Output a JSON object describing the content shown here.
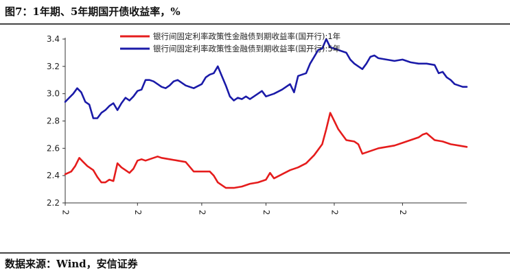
{
  "header": {
    "title": "图7：1年期、5年期国开债收益率，%"
  },
  "footer": {
    "source": "数据来源：Wind，安信证券"
  },
  "colors": {
    "series_1y": "#e51c1c",
    "series_5y": "#1a1aa8",
    "axis": "#333333"
  },
  "chart_data": {
    "type": "line",
    "title": "图7：1年期、5年期国开债收益率，%",
    "xlabel": "",
    "ylabel": "",
    "ylim": [
      2.2,
      3.4
    ],
    "yticks": [
      2.2,
      2.4,
      2.6,
      2.8,
      3.0,
      3.2,
      3.4
    ],
    "ytick_labels": [
      "2.2",
      "2.4",
      "2.6",
      "2.8",
      "3.0",
      "3.2",
      "3.4"
    ],
    "xlim": [
      0,
      100
    ],
    "xticks": [
      0,
      18,
      34,
      50,
      67,
      84
    ],
    "xtick_labels": [
      "2",
      "2",
      "2",
      "2",
      "2",
      "2"
    ],
    "grid": false,
    "legend": "top-center",
    "series": [
      {
        "name": "银行间固定利率政策性金融债到期收益率(国开行):1年",
        "color": "#e51c1c",
        "x": [
          0,
          1.5,
          2.5,
          3.5,
          4.5,
          5.5,
          7,
          8,
          9,
          10,
          11,
          12,
          13,
          14,
          15,
          16,
          17,
          18,
          19,
          20,
          21,
          22,
          23,
          24,
          26,
          28,
          30,
          32,
          34,
          36,
          37,
          38,
          39,
          40,
          42,
          44,
          46,
          48,
          50,
          51,
          52,
          54,
          56,
          58,
          60,
          62,
          63,
          64,
          65,
          66,
          67,
          68,
          69,
          70,
          72,
          73,
          74,
          76,
          78,
          80,
          82,
          84,
          86,
          88,
          89,
          90,
          92,
          94,
          96,
          98,
          100
        ],
        "values": [
          2.41,
          2.43,
          2.47,
          2.53,
          2.5,
          2.47,
          2.44,
          2.39,
          2.35,
          2.35,
          2.37,
          2.36,
          2.49,
          2.46,
          2.44,
          2.42,
          2.45,
          2.51,
          2.52,
          2.51,
          2.52,
          2.53,
          2.54,
          2.53,
          2.52,
          2.51,
          2.5,
          2.43,
          2.43,
          2.43,
          2.4,
          2.35,
          2.33,
          2.31,
          2.31,
          2.32,
          2.34,
          2.35,
          2.37,
          2.42,
          2.38,
          2.41,
          2.44,
          2.46,
          2.49,
          2.55,
          2.59,
          2.63,
          2.74,
          2.86,
          2.8,
          2.74,
          2.7,
          2.66,
          2.65,
          2.63,
          2.56,
          2.58,
          2.6,
          2.61,
          2.62,
          2.64,
          2.66,
          2.68,
          2.7,
          2.71,
          2.66,
          2.65,
          2.63,
          2.62,
          2.61
        ]
      },
      {
        "name": "银行间固定利率政策性金融债到期收益率(国开行):5年",
        "color": "#1a1aa8",
        "x": [
          0,
          1,
          2,
          3,
          4,
          5,
          6,
          7,
          8,
          9,
          10,
          11,
          12,
          13,
          14,
          15,
          16,
          17,
          18,
          19,
          20,
          21,
          22,
          23,
          24,
          25,
          26,
          27,
          28,
          30,
          32,
          34,
          35,
          36,
          37,
          38,
          39,
          40,
          41,
          42,
          43,
          44,
          45,
          46,
          47,
          48,
          49,
          50,
          52,
          54,
          56,
          57,
          58,
          59,
          60,
          61,
          62,
          63,
          64,
          65,
          66,
          67,
          68,
          69,
          70,
          71,
          72,
          73,
          74,
          75,
          76,
          77,
          78,
          80,
          82,
          84,
          86,
          88,
          90,
          92,
          93,
          94,
          95,
          96,
          97,
          98,
          99,
          100
        ],
        "values": [
          2.94,
          2.97,
          3.0,
          3.04,
          3.01,
          2.94,
          2.92,
          2.82,
          2.82,
          2.86,
          2.88,
          2.91,
          2.93,
          2.88,
          2.93,
          2.97,
          2.95,
          2.98,
          3.02,
          3.03,
          3.1,
          3.1,
          3.09,
          3.07,
          3.05,
          3.04,
          3.06,
          3.09,
          3.1,
          3.06,
          3.04,
          3.07,
          3.12,
          3.14,
          3.15,
          3.2,
          3.13,
          3.06,
          2.98,
          2.95,
          2.97,
          2.96,
          2.98,
          2.96,
          2.98,
          3.0,
          3.02,
          2.98,
          3.0,
          3.03,
          3.07,
          3.01,
          3.13,
          3.14,
          3.15,
          3.22,
          3.27,
          3.32,
          3.33,
          3.4,
          3.34,
          3.33,
          3.32,
          3.31,
          3.3,
          3.25,
          3.22,
          3.2,
          3.18,
          3.22,
          3.27,
          3.28,
          3.26,
          3.25,
          3.24,
          3.25,
          3.23,
          3.22,
          3.22,
          3.21,
          3.15,
          3.16,
          3.12,
          3.1,
          3.07,
          3.06,
          3.05,
          3.05
        ]
      }
    ]
  }
}
